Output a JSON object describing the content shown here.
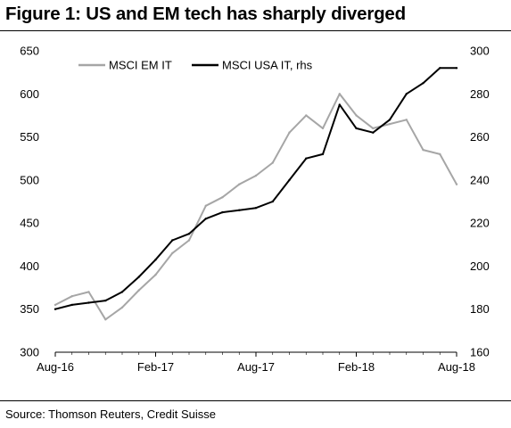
{
  "header": {
    "title": "Figure 1: US and EM tech has sharply diverged"
  },
  "footer": {
    "source": "Source: Thomson Reuters, Credit Suisse"
  },
  "chart_data": {
    "type": "line",
    "title": "Figure 1: US and EM tech has sharply diverged",
    "xlabel": "",
    "ylabel": "",
    "x_tick_labels": [
      "Aug-16",
      "Feb-17",
      "Aug-17",
      "Feb-18",
      "Aug-18"
    ],
    "x_domain": [
      "2016-08",
      "2018-08"
    ],
    "y_left": {
      "ylim": [
        300,
        650
      ],
      "ticks": [
        300,
        350,
        400,
        450,
        500,
        550,
        600,
        650
      ]
    },
    "y_right": {
      "ylim": [
        160,
        300
      ],
      "ticks": [
        160,
        180,
        200,
        220,
        240,
        260,
        280,
        300
      ]
    },
    "grid": false,
    "legend_position": "top-left",
    "series": [
      {
        "name": "MSCI EM IT",
        "axis": "left",
        "color": "#a6a6a6",
        "x": [
          "2016-08",
          "2016-09",
          "2016-10",
          "2016-11",
          "2016-12",
          "2017-01",
          "2017-02",
          "2017-03",
          "2017-04",
          "2017-05",
          "2017-06",
          "2017-07",
          "2017-08",
          "2017-09",
          "2017-10",
          "2017-11",
          "2017-12",
          "2018-01",
          "2018-02",
          "2018-03",
          "2018-04",
          "2018-05",
          "2018-06",
          "2018-07",
          "2018-08"
        ],
        "values": [
          355,
          365,
          370,
          338,
          352,
          372,
          390,
          415,
          430,
          470,
          480,
          495,
          505,
          520,
          555,
          575,
          560,
          600,
          575,
          560,
          565,
          570,
          535,
          530,
          495
        ]
      },
      {
        "name": "MSCI USA IT, rhs",
        "axis": "right",
        "color": "#000000",
        "x": [
          "2016-08",
          "2016-09",
          "2016-10",
          "2016-11",
          "2016-12",
          "2017-01",
          "2017-02",
          "2017-03",
          "2017-04",
          "2017-05",
          "2017-06",
          "2017-07",
          "2017-08",
          "2017-09",
          "2017-10",
          "2017-11",
          "2017-12",
          "2018-01",
          "2018-02",
          "2018-03",
          "2018-04",
          "2018-05",
          "2018-06",
          "2018-07",
          "2018-08"
        ],
        "values": [
          180,
          182,
          183,
          184,
          188,
          195,
          203,
          212,
          215,
          222,
          225,
          226,
          227,
          230,
          240,
          250,
          252,
          275,
          264,
          262,
          268,
          280,
          285,
          292,
          292
        ]
      }
    ]
  }
}
